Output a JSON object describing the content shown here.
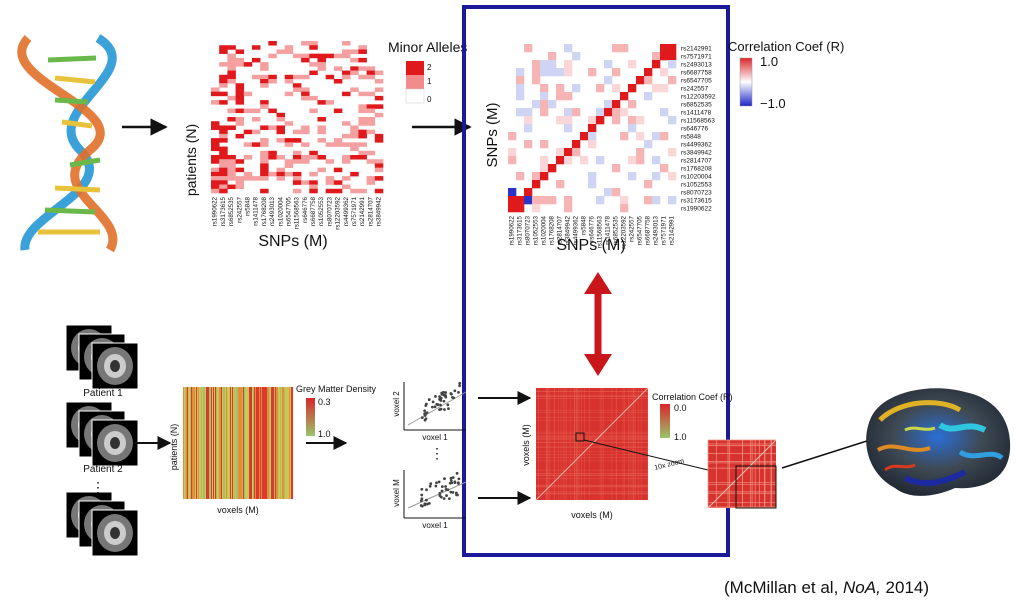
{
  "colors": {
    "highlight_box": "#1a1a9a",
    "allele_high": "#e0191c",
    "allele_mid": "#f28c8c",
    "correlation_pos": "#e0191c",
    "correlation_neg": "#1d27c9",
    "double_arrow": "#c8161b",
    "gm_low": "#9ac46a",
    "gm_high": "#d9262b"
  },
  "top": {
    "allele_matrix": {
      "ylabel": "patients (N)",
      "xlabel": "SNPs (M)",
      "legend_title": "Minor Alleles",
      "legend_values": [
        "2",
        "1",
        "0"
      ],
      "snp_ticks": [
        "rs1990622",
        "rs3173615",
        "rs8070723",
        "rs1052553",
        "rs1020004",
        "rs1768208",
        "rs2814707",
        "rs3849942",
        "rs4499362",
        "rs5848",
        "rs646776",
        "rs11568563",
        "rs1411478",
        "rs6852535",
        "rs12203592",
        "rs242557",
        "rs6547705",
        "rs6687758",
        "rs2493013",
        "rs7571971",
        "rs2142991"
      ],
      "x_ticks": [
        "rs1990622",
        "rs3173615",
        "rs6852535",
        "rs242557",
        "rs5848",
        "rs1411478",
        "rs1768208",
        "rs2493013",
        "rs1020004",
        "rs6547705",
        "rs11568563",
        "rs646776",
        "rs6687758",
        "rs1052553",
        "rs8070723",
        "rs12203592",
        "rs4499362",
        "rs7571971",
        "rs2142991",
        "rs2814707",
        "rs3849942"
      ]
    },
    "snp_corr": {
      "ylabel": "SNPs (M)",
      "xlabel": "SNPs (M)",
      "legend_title": "Correlation Coef (R)",
      "legend_max": "1.0",
      "legend_min": "−1.0",
      "row_labels": [
        "rs2142991",
        "rs7571971",
        "rs2493013",
        "rs6687758",
        "rs6547705",
        "rs242557",
        "rs12203592",
        "rs6852535",
        "rs1411478",
        "rs11568563",
        "rs646776",
        "rs5848",
        "rs4499362",
        "rs3849942",
        "rs2814707",
        "rs1768208",
        "rs1020004",
        "rs1052553",
        "rs8070723",
        "rs3173615",
        "rs1990622"
      ],
      "col_labels": [
        "rs1990622",
        "rs3173615",
        "rs8070723",
        "rs1052553",
        "rs1020004",
        "rs1768208",
        "rs2814707",
        "rs3849942",
        "rs4499362",
        "rs5848",
        "rs646776",
        "rs11568563",
        "rs1411478",
        "rs6852535",
        "rs12203592",
        "rs242557",
        "rs6547705",
        "rs6687758",
        "rs2493013",
        "rs7571971",
        "rs2142991"
      ]
    }
  },
  "bottom": {
    "patients": [
      "Patient 1",
      "Patient 2"
    ],
    "ellipsis": "⋮",
    "gm_matrix": {
      "ylabel": "patients (N)",
      "xlabel": "voxels (M)",
      "legend_title": "Grey Matter Density",
      "legend_max": "0.3",
      "legend_min": "1.0"
    },
    "scatter": {
      "top_ylabel": "voxel 2",
      "top_xlabel": "voxel 1",
      "bottom_ylabel": "voxel M",
      "bottom_xlabel": "voxel 1",
      "dots": "⋮"
    },
    "voxel_corr": {
      "ylabel": "voxels (M)",
      "xlabel": "voxels (M)",
      "legend_title": "Correlation Coef (R)",
      "legend_max": "0.0",
      "legend_min": "1.0",
      "zoom_label": "10x zoom"
    }
  },
  "citation": {
    "prefix": "(McMillan et al, ",
    "journal": "NoA,",
    "suffix": " 2014)"
  }
}
